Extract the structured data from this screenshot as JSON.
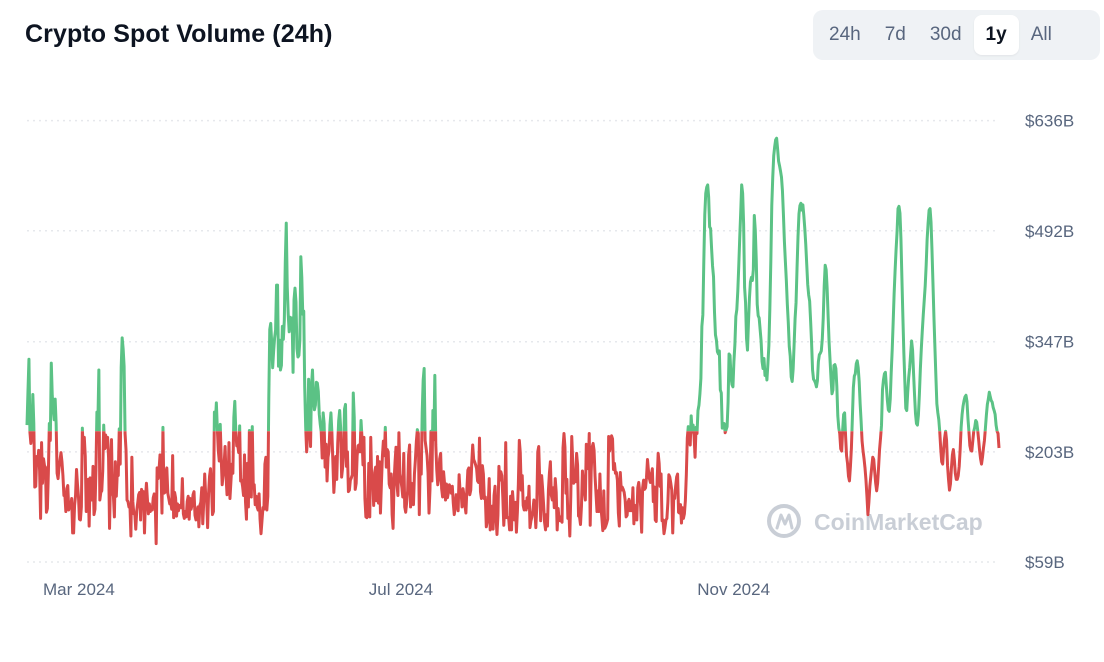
{
  "header": {
    "title": "Crypto Spot Volume (24h)",
    "range_buttons": [
      "24h",
      "7d",
      "30d",
      "1y",
      "All"
    ],
    "active_range": "1y"
  },
  "watermark": "CoinMarketCap",
  "colors": {
    "above": "#5bc285",
    "below": "#d94a4a",
    "grid": "#e6e8ec",
    "text": "#58667e"
  },
  "chart_data": {
    "type": "line",
    "title": "Crypto Spot Volume (24h)",
    "y_unit": "USD",
    "y_ticks": [
      "$636B",
      "$492B",
      "$347B",
      "$203B",
      "$59B"
    ],
    "y_tick_values": [
      636,
      492,
      347,
      203,
      59
    ],
    "ylim": [
      59,
      636
    ],
    "x_ticks": [
      "Mar 2024",
      "Jul 2024",
      "Nov 2024"
    ],
    "x_range": [
      "2024-02-24",
      "2025-02-22"
    ],
    "baseline": 230,
    "grid": true,
    "series": [
      {
        "values": [
          238,
          282,
          324,
          229,
          214,
          228,
          278,
          240,
          157,
          158,
          197,
          187,
          205,
          178,
          116,
          215,
          162,
          194,
          185,
          183,
          124,
          129,
          175,
          240,
          218,
          319,
          277,
          259,
          245,
          272,
          240,
          175,
          168,
          183,
          192,
          202,
          190,
          172,
          146,
          147,
          125,
          155,
          159,
          127,
          133,
          130,
          142,
          97,
          97,
          133,
          146,
          180,
          160,
          145,
          115,
          114,
          131,
          234,
          202,
          222,
          197,
          125,
          149,
          167,
          106,
          169,
          165,
          140,
          184,
          121,
          128,
          179,
          255,
          242,
          310,
          140,
          150,
          152,
          178,
          238,
          207,
          225,
          209,
          222,
          195,
          103,
          171,
          219,
          150,
          145,
          118,
          190,
          145,
          177,
          172,
          233,
          187,
          313,
          352,
          338,
          315,
          227,
          205,
          140,
          138,
          131,
          134,
          93,
          196,
          138,
          122,
          123,
          102,
          126,
          136,
          147,
          150,
          114,
          154,
          144,
          151,
          97,
          142,
          162,
          141,
          122,
          135,
          125,
          131,
          127,
          143,
          148,
          139,
          83,
          182,
          168,
          180,
          199,
          179,
          123,
          235,
          149,
          150,
          176,
          182,
          149,
          142,
          135,
          138,
          128,
          198,
          117,
          150,
          143,
          119,
          135,
          126,
          133,
          132,
          130,
          168,
          122,
          116,
          125,
          118,
          138,
          145,
          115,
          142,
          128,
          134,
          147,
          151,
          120,
          114,
          123,
          131,
          105,
          133,
          137,
          156,
          109,
          137,
          174,
          146,
          142,
          104,
          149,
          171,
          181,
          158,
          121,
          125,
          255,
          241,
          267,
          234,
          205,
          191,
          239,
          195,
          160,
          174,
          187,
          210,
          171,
          147,
          154,
          215,
          142,
          164,
          187,
          175,
          248,
          269,
          231,
          211,
          212,
          202,
          237,
          165,
          166,
          158,
          146,
          199,
          138,
          115,
          188,
          131,
          231,
          185,
          144,
          236,
          160,
          160,
          134,
          145,
          131,
          127,
          148,
          115,
          96,
          113,
          130,
          128,
          187,
          196,
          127,
          145,
          272,
          363,
          371,
          345,
          313,
          335,
          352,
          362,
          421,
          421,
          315,
          349,
          310,
          316,
          367,
          350,
          375,
          451,
          502,
          419,
          383,
          360,
          379,
          365,
          378,
          307,
          402,
          417,
          399,
          338,
          327,
          329,
          349,
          458,
          431,
          383,
          387,
          288,
          235,
          203,
          225,
          298,
          269,
          210,
          290,
          310,
          275,
          258,
          264,
          294,
          293,
          282,
          252,
          239,
          229,
          195,
          254,
          240,
          183,
          213,
          165,
          196,
          204,
          238,
          254,
          228,
          190,
          150,
          172,
          197,
          167,
          214,
          244,
          257,
          234,
          170,
          182,
          200,
          259,
          265,
          184,
          203,
          151,
          153,
          166,
          169,
          173,
          280,
          248,
          154,
          162,
          198,
          211,
          212,
          203,
          244,
          221,
          186,
          222,
          142,
          118,
          117,
          131,
          188,
          118,
          222,
          165,
          170,
          133,
          176,
          183,
          139,
          197,
          136,
          190,
          123,
          162,
          197,
          217,
          198,
          235,
          183,
          206,
          203,
          161,
          156,
          174,
          121,
          103,
          164,
          189,
          209,
          160,
          146,
          228,
          174,
          166,
          157,
          144,
          201,
          131,
          124,
          137,
          152,
          199,
          212,
          131,
          162,
          160,
          134,
          174,
          193,
          217,
          232,
          227,
          121,
          199,
          174,
          255,
          297,
          312,
          218,
          208,
          198,
          176,
          123,
          154,
          230,
          165,
          257,
          219,
          303,
          212,
          179,
          160,
          168,
          194,
          201,
          155,
          144,
          177,
          162,
          140,
          161,
          143,
          150,
          160,
          153,
          149,
          158,
          136,
          121,
          130,
          147,
          143,
          126,
          173,
          151,
          152,
          131,
          155,
          146,
          133,
          123,
          154,
          179,
          182,
          147,
          153,
          188,
          212,
          193,
          190,
          186,
          181,
          165,
          163,
          221,
          151,
          142,
          185,
          174,
          142,
          144,
          105,
          112,
          134,
          168,
          101,
          123,
          132,
          102,
          146,
          158,
          118,
          95,
          120,
          184,
          166,
          177,
          172,
          144,
          107,
          130,
          215,
          117,
          117,
          117,
          101,
          145,
          101,
          151,
          133,
          114,
          137,
          98,
          124,
          160,
          218,
          202,
          153,
          172,
          133,
          127,
          138,
          127,
          143,
          130,
          158,
          104,
          113,
          118,
          127,
          140,
          128,
          104,
          132,
          203,
          210,
          166,
          113,
          172,
          155,
          134,
          111,
          101,
          121,
          106,
          153,
          175,
          190,
          146,
          140,
          156,
          130,
          168,
          150,
          101,
          129,
          113,
          118,
          113,
          111,
          208,
          227,
          209,
          149,
          167,
          116,
          129,
          93,
          145,
          223,
          190,
          162,
          176,
          164,
          201,
          186,
          119,
          118,
          108,
          132,
          178,
          162,
          151,
          140,
          213,
          203,
          181,
          227,
          107,
          177,
          209,
          214,
          205,
          171,
          148,
          125,
          152,
          125,
          174,
          131,
          117,
          100,
          152,
          103,
          106,
          110,
          115,
          223,
          204,
          213,
          224,
          220,
          180,
          188,
          175,
          176,
          166,
          123,
          106,
          176,
          153,
          157,
          154,
          150,
          140,
          118,
          120,
          137,
          141,
          126,
          138,
          126,
          156,
          109,
          133,
          128,
          114,
          156,
          163,
          150,
          131,
          98,
          156,
          166,
          154,
          156,
          170,
          193,
          178,
          168,
          163,
          173,
          181,
          138,
          157,
          114,
          112,
          168,
          201,
          188,
          158,
          174,
          113,
          114,
          96,
          104,
          114,
          116,
          137,
          173,
          170,
          162,
          153,
          97,
          143,
          142,
          158,
          170,
          174,
          124,
          123,
          134,
          110,
          130,
          116,
          122,
          139,
          173,
          221,
          236,
          231,
          212,
          250,
          229,
          238,
          223,
          196,
          235,
          227,
          257,
          264,
          279,
          299,
          367,
          382,
          452,
          513,
          541,
          549,
          552,
          536,
          497,
          495,
          469,
          446,
          432,
          386,
          356,
          349,
          334,
          331,
          335,
          284,
          280,
          234,
          236,
          240,
          228,
          232,
          236,
          268,
          331,
          329,
          301,
          291,
          288,
          321,
          343,
          380,
          389,
          413,
          446,
          483,
          516,
          552,
          541,
          501,
          418,
          398,
          351,
          336,
          372,
          404,
          425,
          431,
          427,
          441,
          512,
          493,
          455,
          396,
          381,
          378,
          363,
          348,
          321,
          312,
          325,
          303,
          310,
          297,
          318,
          342,
          390,
          451,
          525,
          562,
          590,
          602,
          611,
          613,
          599,
          583,
          577,
          570,
          562,
          544,
          513,
          478,
          452,
          427,
          396,
          372,
          341,
          328,
          301,
          295,
          311,
          343,
          377,
          398,
          443,
          484,
          514,
          525,
          528,
          519,
          526,
          512,
          495,
          474,
          448,
          422,
          408,
          400,
          374,
          345,
          310,
          298,
          296,
          293,
          288,
          296,
          321,
          330,
          332,
          335,
          350,
          378,
          420,
          447,
          441,
          417,
          381,
          347,
          323,
          299,
          279,
          284,
          316,
          317,
          312,
          288,
          250,
          234,
          227,
          207,
          204,
          232,
          252,
          254,
          224,
          198,
          188,
          171,
          165,
          184,
          208,
          247,
          287,
          302,
          305,
          318,
          322,
          313,
          295,
          266,
          243,
          217,
          204,
          194,
          182,
          166,
          145,
          121,
          137,
          158,
          171,
          184,
          196,
          193,
          177,
          162,
          152,
          162,
          183,
          206,
          221,
          238,
          284,
          297,
          305,
          307,
          289,
          271,
          258,
          256,
          272,
          307,
          336,
          372,
          410,
          440,
          467,
          490,
          521,
          524,
          515,
          482,
          430,
          380,
          333,
          296,
          260,
          257,
          281,
          300,
          313,
          331,
          348,
          336,
          306,
          278,
          253,
          240,
          238,
          251,
          278,
          311,
          338,
          361,
          382,
          401,
          420,
          447,
          481,
          502,
          519,
          521,
          503,
          466,
          423,
          379,
          340,
          302,
          266,
          254,
          245,
          229,
          207,
          190,
          187,
          207,
          221,
          230,
          218,
          185,
          167,
          153,
          161,
          182,
          199,
          206,
          193,
          175,
          167,
          167,
          172,
          184,
          206,
          235,
          252,
          263,
          270,
          275,
          277,
          269,
          247,
          230,
          211,
          205,
          204,
          217,
          230,
          235,
          244,
          242,
          232,
          219,
          205,
          194,
          187,
          196,
          208,
          218,
          234,
          251,
          265,
          272,
          281,
          275,
          270,
          268,
          261,
          257,
          252,
          238,
          230,
          227,
          208
        ]
      }
    ]
  }
}
